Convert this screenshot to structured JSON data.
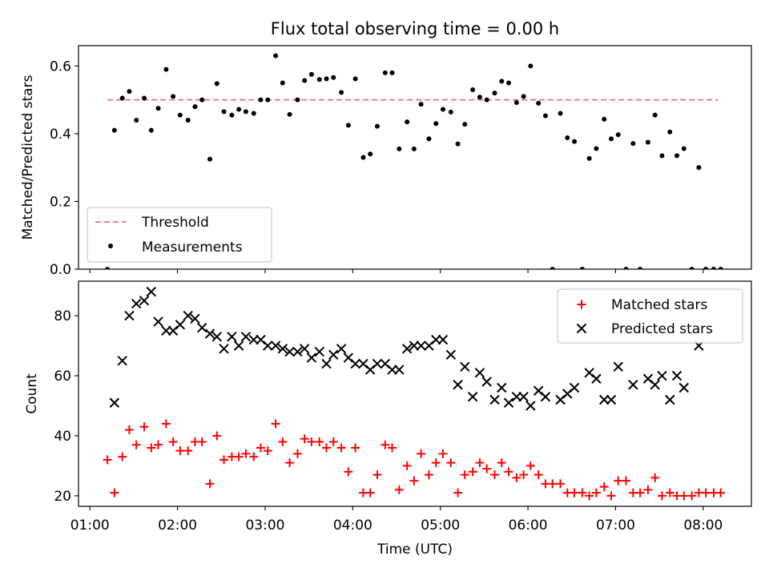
{
  "title": "Flux total observing time = 0.00 h",
  "xlabel": "Time (UTC)",
  "chart_data": [
    {
      "type": "scatter",
      "panel": "top",
      "ylabel": "Matched/Predicted stars",
      "ylim": [
        0,
        0.66
      ],
      "yticks": [
        0.0,
        0.2,
        0.4,
        0.6
      ],
      "ytick_labels": [
        "0.0",
        "0.2",
        "0.4",
        "0.6"
      ],
      "xlim": [
        0.87,
        8.55
      ],
      "legend_position": "lower-left",
      "threshold": {
        "name": "Threshold",
        "value": 0.5,
        "x_range": [
          1.2,
          8.17
        ],
        "color": "#f08080"
      },
      "series": [
        {
          "name": "Measurements",
          "color": "#000000",
          "x": [
            1.2,
            1.28,
            1.37,
            1.45,
            1.53,
            1.62,
            1.7,
            1.78,
            1.87,
            1.95,
            2.03,
            2.12,
            2.2,
            2.28,
            2.37,
            2.45,
            2.53,
            2.62,
            2.7,
            2.78,
            2.87,
            2.95,
            3.03,
            3.12,
            3.2,
            3.28,
            3.37,
            3.45,
            3.53,
            3.62,
            3.7,
            3.78,
            3.87,
            3.95,
            4.03,
            4.12,
            4.2,
            4.28,
            4.37,
            4.45,
            4.53,
            4.62,
            4.7,
            4.78,
            4.87,
            4.95,
            5.03,
            5.12,
            5.2,
            5.28,
            5.37,
            5.45,
            5.53,
            5.62,
            5.7,
            5.78,
            5.87,
            5.95,
            6.03,
            6.12,
            6.2,
            6.28,
            6.37,
            6.45,
            6.53,
            6.62,
            6.7,
            6.78,
            6.87,
            6.95,
            7.03,
            7.12,
            7.2,
            7.28,
            7.37,
            7.45,
            7.53,
            7.62,
            7.7,
            7.78,
            7.87,
            7.95,
            8.03,
            8.12,
            8.2
          ],
          "y": [
            0.0,
            0.41,
            0.505,
            0.525,
            0.44,
            0.505,
            0.41,
            0.475,
            0.59,
            0.51,
            0.455,
            0.44,
            0.48,
            0.5,
            0.325,
            0.548,
            0.465,
            0.455,
            0.472,
            0.465,
            0.46,
            0.5,
            0.5,
            0.63,
            0.55,
            0.457,
            0.5,
            0.557,
            0.575,
            0.56,
            0.562,
            0.566,
            0.522,
            0.425,
            0.562,
            0.33,
            0.34,
            0.422,
            0.58,
            0.58,
            0.355,
            0.435,
            0.355,
            0.487,
            0.385,
            0.43,
            0.472,
            0.464,
            0.37,
            0.428,
            0.53,
            0.508,
            0.5,
            0.52,
            0.555,
            0.55,
            0.492,
            0.51,
            0.6,
            0.49,
            0.453,
            0.0,
            0.46,
            0.388,
            0.377,
            0.0,
            0.327,
            0.356,
            0.443,
            0.385,
            0.397,
            0.0,
            0.371,
            0.0,
            0.375,
            0.455,
            0.335,
            0.405,
            0.335,
            0.356,
            0.0,
            0.3,
            0.0,
            0.0,
            0.0
          ]
        }
      ]
    },
    {
      "type": "scatter",
      "panel": "bottom",
      "ylabel": "Count",
      "ylim": [
        16.5,
        91.5
      ],
      "yticks": [
        20,
        40,
        60,
        80
      ],
      "ytick_labels": [
        "20",
        "40",
        "60",
        "80"
      ],
      "xlim": [
        0.87,
        8.55
      ],
      "xticks": [
        1,
        2,
        3,
        4,
        5,
        6,
        7,
        8
      ],
      "xtick_labels": [
        "01:00",
        "02:00",
        "03:00",
        "04:00",
        "05:00",
        "06:00",
        "07:00",
        "08:00"
      ],
      "legend_position": "upper-right",
      "series": [
        {
          "name": "Matched stars",
          "marker": "+",
          "color": "#ff0000",
          "x": [
            1.2,
            1.28,
            1.37,
            1.45,
            1.53,
            1.62,
            1.7,
            1.78,
            1.87,
            1.95,
            2.03,
            2.12,
            2.2,
            2.28,
            2.37,
            2.45,
            2.53,
            2.62,
            2.7,
            2.78,
            2.87,
            2.95,
            3.03,
            3.12,
            3.2,
            3.28,
            3.37,
            3.45,
            3.53,
            3.62,
            3.7,
            3.78,
            3.87,
            3.95,
            4.03,
            4.12,
            4.2,
            4.28,
            4.37,
            4.45,
            4.53,
            4.62,
            4.7,
            4.78,
            4.87,
            4.95,
            5.03,
            5.12,
            5.2,
            5.28,
            5.37,
            5.45,
            5.53,
            5.62,
            5.7,
            5.78,
            5.87,
            5.95,
            6.03,
            6.12,
            6.2,
            6.28,
            6.37,
            6.45,
            6.53,
            6.62,
            6.7,
            6.78,
            6.87,
            6.95,
            7.03,
            7.12,
            7.2,
            7.28,
            7.37,
            7.45,
            7.53,
            7.62,
            7.7,
            7.78,
            7.87,
            7.95,
            8.03,
            8.12,
            8.2
          ],
          "y": [
            32,
            21,
            33,
            42,
            37,
            43,
            36,
            37,
            44,
            38,
            35,
            35,
            38,
            38,
            24,
            40,
            32,
            33,
            33,
            34,
            33,
            36,
            35,
            44,
            38,
            31,
            34,
            39,
            38,
            38,
            36,
            38,
            36,
            28,
            36,
            21,
            21,
            27,
            37,
            36,
            22,
            30,
            25,
            34,
            27,
            31,
            34,
            31,
            21,
            27,
            28,
            31,
            29,
            27,
            31,
            28,
            26,
            27,
            30,
            27,
            24,
            24,
            24,
            21,
            21,
            21,
            20,
            21,
            23,
            20,
            25,
            25,
            21,
            21,
            22,
            26,
            20,
            21,
            20,
            20,
            20,
            21,
            21,
            21,
            21
          ]
        },
        {
          "name": "Predicted stars",
          "marker": "x",
          "color": "#000000",
          "x": [
            1.28,
            1.37,
            1.45,
            1.53,
            1.62,
            1.7,
            1.78,
            1.87,
            1.95,
            2.03,
            2.12,
            2.2,
            2.28,
            2.37,
            2.45,
            2.53,
            2.62,
            2.7,
            2.78,
            2.87,
            2.95,
            3.03,
            3.12,
            3.2,
            3.28,
            3.37,
            3.45,
            3.53,
            3.62,
            3.7,
            3.78,
            3.87,
            3.95,
            4.03,
            4.12,
            4.2,
            4.28,
            4.37,
            4.45,
            4.53,
            4.62,
            4.7,
            4.78,
            4.87,
            4.95,
            5.03,
            5.12,
            5.2,
            5.28,
            5.37,
            5.45,
            5.53,
            5.62,
            5.7,
            5.78,
            5.87,
            5.95,
            6.03,
            6.12,
            6.2,
            6.37,
            6.45,
            6.53,
            6.7,
            6.78,
            6.87,
            6.95,
            7.03,
            7.2,
            7.37,
            7.45,
            7.53,
            7.62,
            7.7,
            7.78,
            7.95
          ],
          "y": [
            51,
            65,
            80,
            84,
            85,
            88,
            78,
            75,
            75,
            77,
            80,
            79,
            76,
            74,
            73,
            69,
            73,
            70,
            73,
            72,
            72,
            70,
            70,
            69,
            68,
            68,
            69,
            66,
            68,
            64,
            67,
            69,
            66,
            64,
            64,
            62,
            64,
            64,
            62,
            62,
            69,
            70,
            70,
            70,
            72,
            72,
            67,
            57,
            63,
            53,
            61,
            58,
            52,
            56,
            51,
            53,
            53,
            50,
            55,
            53,
            52,
            54,
            56,
            61,
            59,
            52,
            52,
            63,
            57,
            59,
            57,
            60,
            52,
            60,
            56,
            70
          ]
        }
      ]
    }
  ]
}
